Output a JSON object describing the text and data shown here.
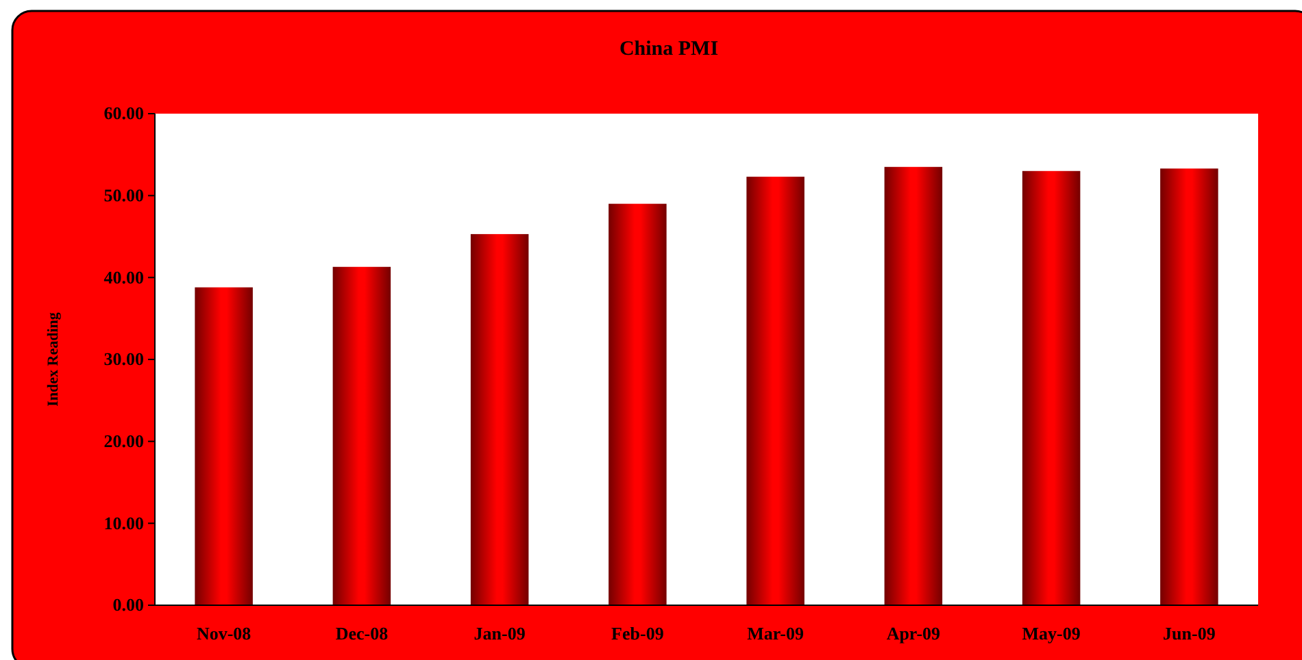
{
  "chart_data": {
    "type": "bar",
    "title": "China PMI",
    "ylabel": "Index Reading",
    "categories": [
      "Nov-08",
      "Dec-08",
      "Jan-09",
      "Feb-09",
      "Mar-09",
      "Apr-09",
      "May-09",
      "Jun-09"
    ],
    "values": [
      38.8,
      41.3,
      45.3,
      49.0,
      52.3,
      53.5,
      53.0,
      53.3
    ],
    "color": "#ff0000",
    "ylim": [
      0,
      60
    ],
    "yticks": [
      {
        "value": 0,
        "label": "0.00"
      },
      {
        "value": 10,
        "label": "10.00"
      },
      {
        "value": 20,
        "label": "20.00"
      },
      {
        "value": 30,
        "label": "30.00"
      },
      {
        "value": 40,
        "label": "40.00"
      },
      {
        "value": 50,
        "label": "50.00"
      },
      {
        "value": 60,
        "label": "60.00"
      }
    ],
    "grid": false
  }
}
